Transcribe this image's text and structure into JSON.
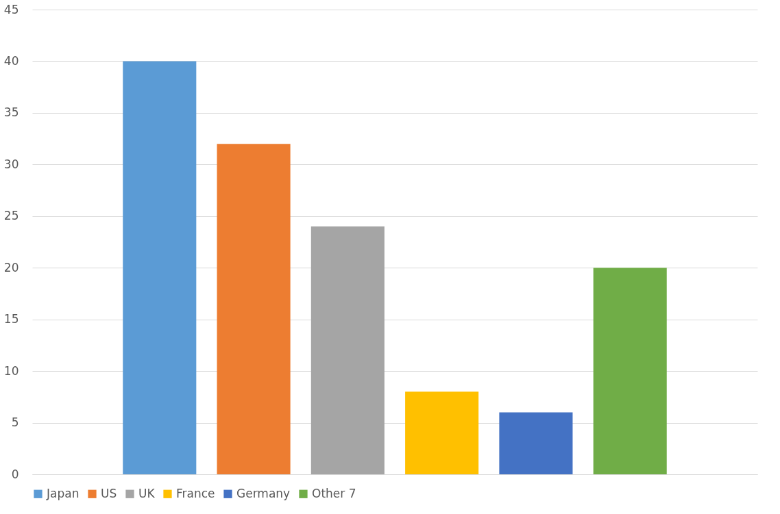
{
  "chart_data": {
    "type": "bar",
    "categories": [
      null
    ],
    "series": [
      {
        "name": "Japan",
        "color": "#5b9bd5",
        "values": [
          40
        ]
      },
      {
        "name": "US",
        "color": "#ed7d31",
        "values": [
          32
        ]
      },
      {
        "name": "UK",
        "color": "#a5a5a5",
        "values": [
          24
        ]
      },
      {
        "name": "France",
        "color": "#ffc000",
        "values": [
          8
        ]
      },
      {
        "name": "Germany",
        "color": "#4472c4",
        "values": [
          6
        ]
      },
      {
        "name": "Other 7",
        "color": "#70ad47",
        "values": [
          20
        ]
      }
    ],
    "ylim": [
      0,
      45
    ],
    "yticks": [
      0,
      5,
      10,
      15,
      20,
      25,
      30,
      35,
      40,
      45
    ],
    "grid": "y",
    "legend": "bottom"
  }
}
